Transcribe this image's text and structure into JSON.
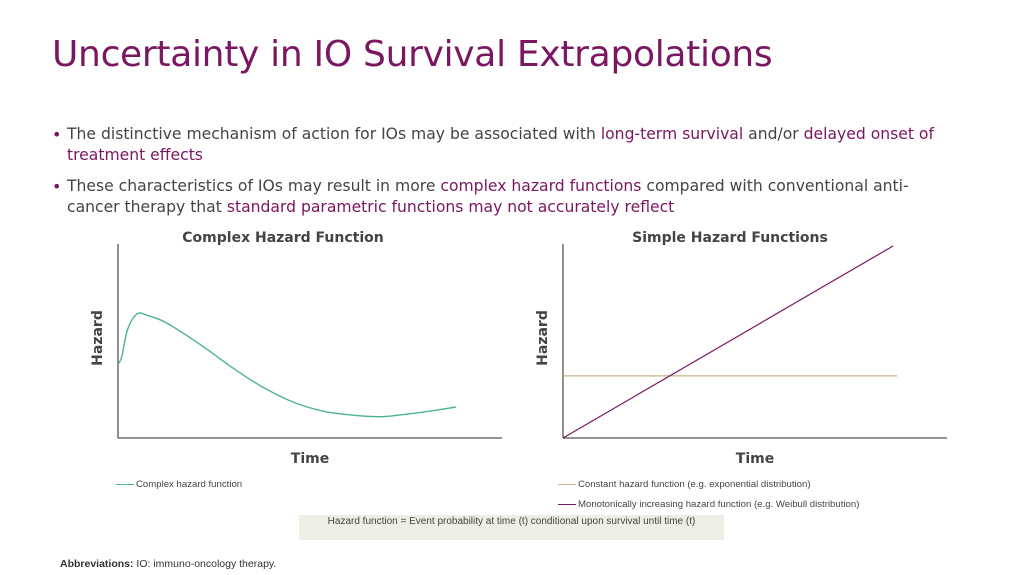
{
  "slide": {
    "title": "Uncertainty in IO Survival Extrapolations",
    "bullets": [
      {
        "parts": [
          {
            "text": "The distinctive mechanism of action for IOs may be associated with ",
            "highlight": false
          },
          {
            "text": "long-term survival",
            "highlight": true
          },
          {
            "text": " and/or ",
            "highlight": false
          },
          {
            "text": "delayed onset of treatment effects",
            "highlight": true
          }
        ]
      },
      {
        "parts": [
          {
            "text": "These characteristics of IOs may result in more ",
            "highlight": false
          },
          {
            "text": "complex hazard functions",
            "highlight": true
          },
          {
            "text": " compared with conventional anti-cancer therapy that ",
            "highlight": false
          },
          {
            "text": "standard parametric functions may not accurately reflect",
            "highlight": true
          }
        ]
      }
    ],
    "formula": "Hazard function = Event probability at time (t) conditional upon survival until time (t)",
    "abbreviations_label": "Abbreviations:",
    "abbreviations_text": " IO: immuno-oncology therapy."
  },
  "colors": {
    "accent": "#7b1660",
    "complex_line": "#4bb58a",
    "constant_line": "#c9b38a",
    "increasing_line": "#7b1660",
    "axis": "#555555"
  },
  "chart_data": [
    {
      "type": "line",
      "title": "Complex Hazard Function",
      "xlabel": "Time",
      "ylabel": "Hazard",
      "xlim": [
        0,
        10
      ],
      "ylim": [
        0,
        10
      ],
      "grid": false,
      "legend_position": "bottom-left",
      "series": [
        {
          "name": "Complex hazard function",
          "color": "#4bb58a",
          "x": [
            0,
            0.1,
            0.25,
            0.5,
            0.8,
            1.2,
            1.7,
            2.3,
            3.0,
            3.7,
            4.5,
            5.3,
            6.0,
            6.8,
            7.4,
            8.0,
            8.8
          ],
          "y": [
            3.8,
            4.2,
            5.6,
            6.4,
            6.3,
            6.0,
            5.4,
            4.6,
            3.6,
            2.7,
            1.9,
            1.4,
            1.2,
            1.1,
            1.2,
            1.35,
            1.6
          ]
        }
      ]
    },
    {
      "type": "line",
      "title": "Simple Hazard Functions",
      "xlabel": "Time",
      "ylabel": "Hazard",
      "xlim": [
        0,
        10
      ],
      "ylim": [
        0,
        10
      ],
      "grid": false,
      "legend_position": "bottom-left",
      "series": [
        {
          "name": "Constant hazard function (e.g. exponential distribution)",
          "color": "#c9b38a",
          "x": [
            0,
            8.7
          ],
          "y": [
            3.2,
            3.2
          ]
        },
        {
          "name": "Monotonically increasing hazard function (e.g. Weibull distribution)",
          "color": "#7b1660",
          "x": [
            0,
            8.6
          ],
          "y": [
            0,
            9.9
          ]
        }
      ]
    }
  ]
}
